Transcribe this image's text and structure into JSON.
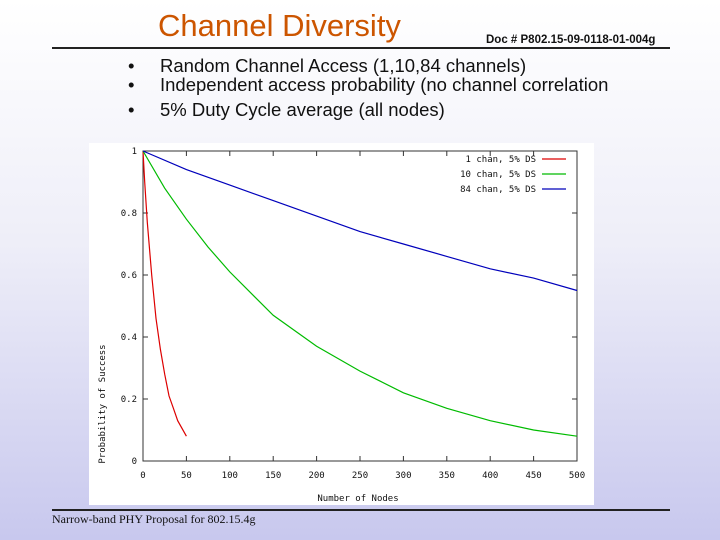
{
  "slide": {
    "title": "Channel Diversity",
    "doc_number": "Doc # P802.15-09-0118-01-004g",
    "bullets": [
      "Random Channel Access (1,10,84 channels)",
      "Independent access probability (no channel correlation",
      "5% Duty Cycle average (all nodes)"
    ],
    "footer": "Narrow-band PHY Proposal for 802.15.4g"
  },
  "chart_data": {
    "type": "line",
    "title": "",
    "xlabel": "Number of Nodes",
    "ylabel": "Probability of Success",
    "xlim": [
      0,
      500
    ],
    "ylim": [
      0,
      1
    ],
    "x_ticks": [
      "0",
      "50",
      "100",
      "150",
      "200",
      "250",
      "300",
      "350",
      "400",
      "450",
      "500"
    ],
    "y_ticks": [
      "0",
      "0.2",
      "0.4",
      "0.6",
      "0.8",
      "1"
    ],
    "legend_position": "top-right",
    "grid": false,
    "series": [
      {
        "name": "1 chan, 5% DS",
        "color": "#dd0000",
        "x": [
          0,
          2,
          5,
          10,
          15,
          20,
          25,
          30,
          35,
          40,
          50
        ],
        "values": [
          1.0,
          0.9,
          0.77,
          0.6,
          0.46,
          0.36,
          0.28,
          0.21,
          0.17,
          0.13,
          0.08
        ]
      },
      {
        "name": "10 chan, 5% DS",
        "color": "#00bb00",
        "x": [
          0,
          25,
          50,
          75,
          100,
          150,
          200,
          250,
          300,
          350,
          400,
          450,
          500
        ],
        "values": [
          1.0,
          0.88,
          0.78,
          0.69,
          0.61,
          0.47,
          0.37,
          0.29,
          0.22,
          0.17,
          0.13,
          0.1,
          0.08
        ]
      },
      {
        "name": "84 chan, 5% DS",
        "color": "#0000bb",
        "x": [
          0,
          50,
          100,
          150,
          200,
          250,
          300,
          350,
          400,
          450,
          500
        ],
        "values": [
          1.0,
          0.94,
          0.89,
          0.84,
          0.79,
          0.74,
          0.7,
          0.66,
          0.62,
          0.59,
          0.55
        ]
      }
    ]
  }
}
